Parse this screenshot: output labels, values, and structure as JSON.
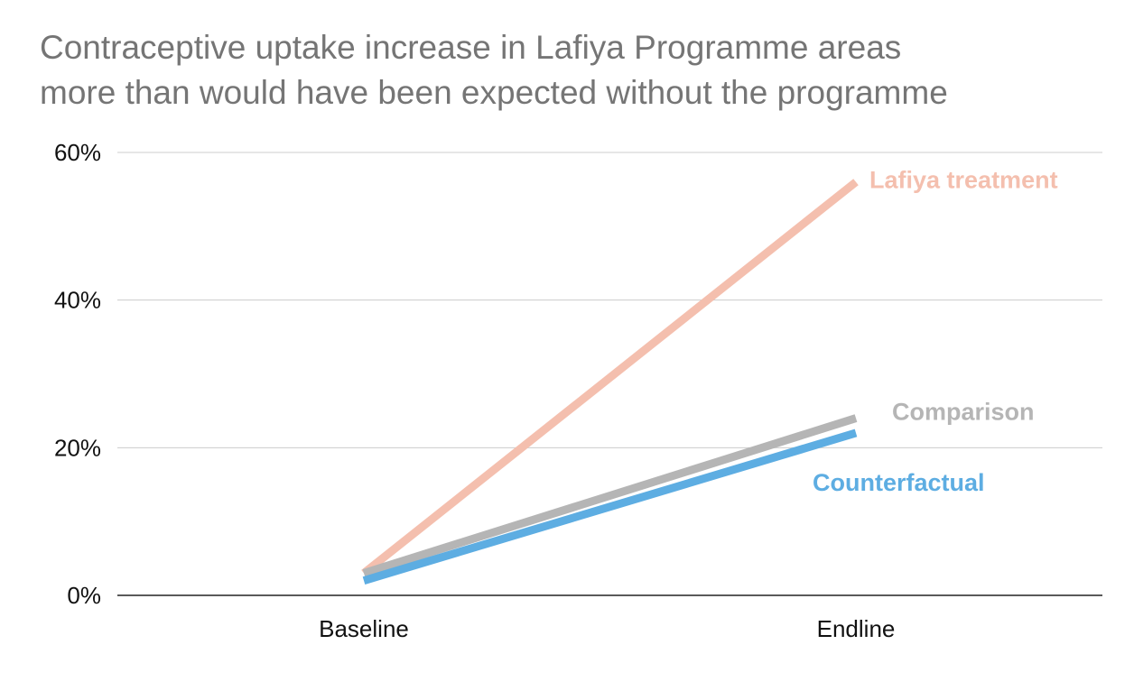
{
  "chart_data": {
    "type": "line",
    "title_lines": [
      "Contraceptive uptake increase in Lafiya Programme areas",
      "more than would have been expected without the programme"
    ],
    "categories": [
      "Baseline",
      "Endline"
    ],
    "ylim": [
      0,
      60
    ],
    "yticks": [
      0,
      20,
      40,
      60
    ],
    "ytick_labels": [
      "0%",
      "20%",
      "40%",
      "60%"
    ],
    "grid": true,
    "xlabel": "",
    "ylabel": "",
    "legend": "inline labels at right end of lines",
    "series": [
      {
        "name": "Lafiya treatment",
        "values": [
          3,
          56
        ],
        "color": "#F4BFAE"
      },
      {
        "name": "Comparison",
        "values": [
          3,
          24
        ],
        "color": "#B5B5B5"
      },
      {
        "name": "Counterfactual",
        "values": [
          2,
          22
        ],
        "color": "#5DADE2"
      }
    ]
  }
}
